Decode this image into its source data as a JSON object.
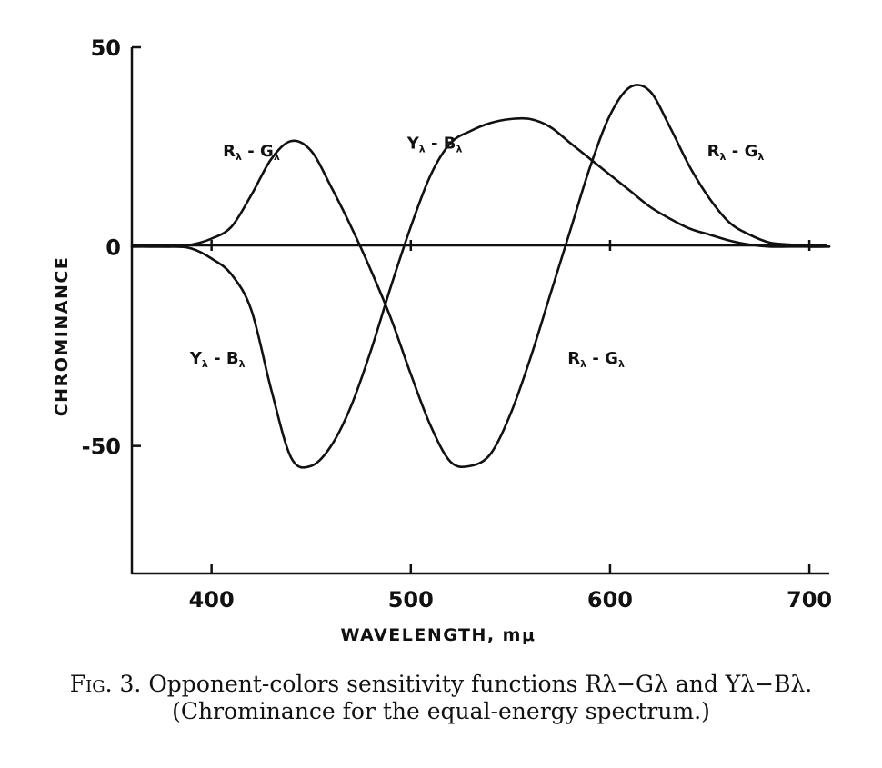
{
  "chart_data": {
    "type": "line",
    "xlabel": "WAVELENGTH, mμ",
    "ylabel": "CHROMINANCE",
    "xlim": [
      360,
      710
    ],
    "ylim": [
      -82,
      50
    ],
    "x_ticks": [
      400,
      500,
      600,
      700
    ],
    "y_ticks": [
      50,
      0,
      -50
    ],
    "x_tick_labels": [
      "400",
      "500",
      "600",
      "700"
    ],
    "y_tick_labels": [
      "50",
      "0",
      "-50"
    ],
    "grid": false,
    "legend": "none",
    "series": [
      {
        "name": "Rλ - Gλ",
        "x": [
          360,
          380,
          390,
          400,
          410,
          420,
          430,
          440,
          450,
          460,
          470,
          480,
          490,
          500,
          510,
          520,
          530,
          540,
          550,
          560,
          570,
          580,
          590,
          600,
          610,
          620,
          630,
          640,
          650,
          660,
          670,
          680,
          690,
          700,
          710
        ],
        "y": [
          0,
          0,
          0.5,
          2,
          5,
          13,
          22,
          26.5,
          24,
          15,
          5,
          -6,
          -18,
          -32,
          -45,
          -54,
          -55,
          -52,
          -42,
          -28,
          -12,
          4,
          20,
          33,
          40,
          39,
          30,
          20,
          12,
          6,
          3,
          1,
          0.5,
          0,
          0
        ]
      },
      {
        "name": "Yλ - Bλ",
        "x": [
          360,
          380,
          390,
          400,
          410,
          420,
          430,
          440,
          450,
          460,
          470,
          480,
          490,
          500,
          510,
          520,
          530,
          540,
          550,
          560,
          570,
          580,
          590,
          600,
          610,
          620,
          630,
          640,
          650,
          660,
          670,
          680,
          690,
          700,
          710
        ],
        "y": [
          0,
          0,
          -0.5,
          -3,
          -7,
          -16,
          -36,
          -53,
          -55,
          -50,
          -40,
          -26,
          -10,
          5,
          18,
          26,
          29,
          31,
          32,
          32,
          30,
          26,
          22,
          18,
          14,
          10,
          7,
          4.5,
          3,
          1.5,
          0.5,
          0,
          0,
          0,
          0
        ]
      }
    ],
    "annotations": [
      {
        "series": "Rλ - Gλ",
        "x": 420,
        "y": 24
      },
      {
        "series": "Yλ - Bλ",
        "x": 512,
        "y": 26
      },
      {
        "series": "Rλ - Gλ",
        "x": 663,
        "y": 24
      },
      {
        "series": "Yλ - Bλ",
        "x": 403,
        "y": -28
      },
      {
        "series": "Rλ - Gλ",
        "x": 593,
        "y": -28
      }
    ]
  },
  "caption": {
    "fig_label": "Fig. 3.",
    "line1": "Opponent-colors sensitivity functions Rλ−Gλ and Yλ−Bλ.",
    "line2": "(Chrominance for the equal-energy spectrum.)"
  }
}
